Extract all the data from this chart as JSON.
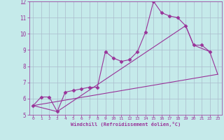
{
  "xlabel": "Windchill (Refroidissement éolien,°C)",
  "bg_color": "#c5eaea",
  "grid_color": "#aabccc",
  "line_color": "#993399",
  "xlim": [
    -0.5,
    23.5
  ],
  "ylim": [
    5,
    12
  ],
  "xticks": [
    0,
    1,
    2,
    3,
    4,
    5,
    6,
    7,
    8,
    9,
    10,
    11,
    12,
    13,
    14,
    15,
    16,
    17,
    18,
    19,
    20,
    21,
    22,
    23
  ],
  "yticks": [
    5,
    6,
    7,
    8,
    9,
    10,
    11,
    12
  ],
  "line1_x": [
    0,
    1,
    2,
    3,
    4,
    5,
    6,
    7,
    8,
    9,
    10,
    11,
    12,
    13,
    14,
    15,
    16,
    17,
    18,
    19,
    20,
    21,
    22
  ],
  "line1_y": [
    5.57,
    6.1,
    6.1,
    5.2,
    6.4,
    6.5,
    6.6,
    6.7,
    6.7,
    8.9,
    8.5,
    8.3,
    8.4,
    8.9,
    10.1,
    12.0,
    11.3,
    11.1,
    11.0,
    10.5,
    9.3,
    9.3,
    8.9
  ],
  "line2_x": [
    0,
    3,
    19,
    20,
    22,
    23
  ],
  "line2_y": [
    5.57,
    5.2,
    10.5,
    9.3,
    8.9,
    7.5
  ],
  "line3_x": [
    0,
    23
  ],
  "line3_y": [
    5.57,
    7.5
  ]
}
